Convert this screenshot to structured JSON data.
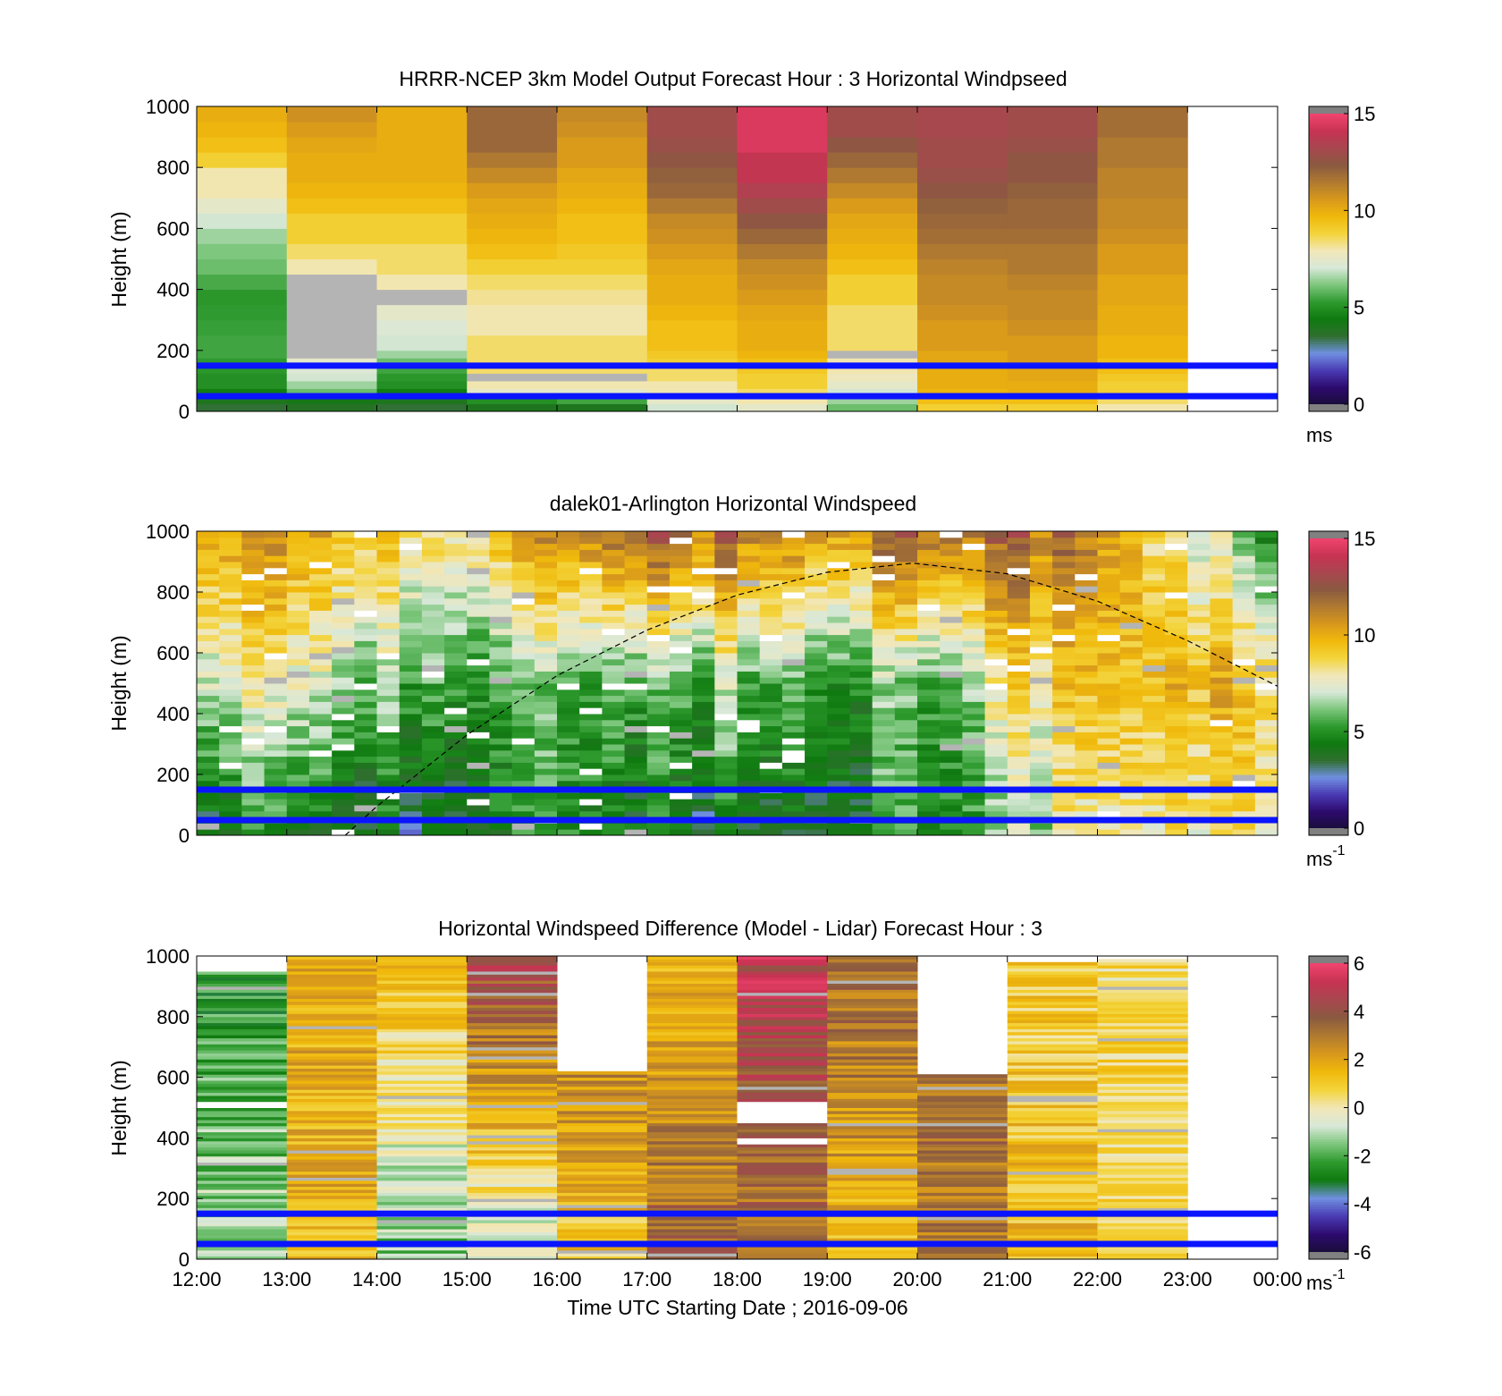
{
  "colors": {
    "speed_colormap": [
      "#1a0d3a",
      "#2d0b6e",
      "#4a3ab4",
      "#6f8fe0",
      "#2f6f2f",
      "#0f7a0f",
      "#2e9a2e",
      "#7cc67c",
      "#d8e8d8",
      "#f2e7b8",
      "#f3d43c",
      "#f0b90b",
      "#d8981c",
      "#b07a30",
      "#8a5a40",
      "#a8474f",
      "#c73352",
      "#f0446e"
    ],
    "diff_colormap": [
      "#1a0d3a",
      "#2d0b6e",
      "#4a3ab4",
      "#6f8fe0",
      "#0f7a0f",
      "#2e9a2e",
      "#7cc67c",
      "#d8e8d8",
      "#f2e7b8",
      "#f3d43c",
      "#f0b90b",
      "#d8981c",
      "#b07a30",
      "#8a5a40",
      "#a8474f",
      "#c73352",
      "#f0446e"
    ],
    "colorbar_ends": "#808080",
    "missing_data": "#b4b4b4",
    "reference_lines": "#0a14ff",
    "curve": "#000000"
  },
  "chart_data": [
    {
      "id": "model",
      "type": "heatmap",
      "title": "HRRR-NCEP 3km Model Output   Forecast Hour : 3 Horizontal Windpseed",
      "ylabel": "Height (m)",
      "ylim": [
        0,
        1000
      ],
      "yticks": [
        "0",
        "200",
        "400",
        "600",
        "800",
        "1000"
      ],
      "xlim": [
        "12:00",
        "00:00"
      ],
      "x_tick_labels": [],
      "colorbar": {
        "min": 0,
        "max": 15,
        "ticks": [
          "0",
          "5",
          "10",
          "15"
        ],
        "unit": "ms",
        "unit_sup": ""
      },
      "reference_lines_m": [
        50,
        150
      ],
      "hours": [
        "12:00",
        "13:00",
        "14:00",
        "15:00",
        "16:00",
        "17:00",
        "18:00",
        "19:00",
        "20:00",
        "21:00",
        "22:00"
      ],
      "heights_m": [
        0,
        25,
        50,
        75,
        100,
        125,
        150,
        175,
        200,
        250,
        300,
        350,
        400,
        450,
        500,
        550,
        600,
        650,
        700,
        750,
        800,
        850,
        900,
        950
      ],
      "bin_top_m": 1000,
      "values_ms": [
        [
          3.5,
          4.0,
          4.5,
          5.0,
          5.0,
          5.2,
          5.3,
          5.5,
          5.5,
          5.4,
          5.3,
          5.2,
          5.6,
          6.0,
          6.2,
          6.5,
          7.0,
          7.5,
          8.0,
          8.0,
          9.0,
          9.5,
          9.8,
          10.0
        ],
        [
          3.8,
          4.2,
          6.0,
          6.5,
          7.0,
          7.2,
          7.5,
          null,
          null,
          null,
          null,
          null,
          null,
          8.0,
          8.5,
          9.0,
          9.0,
          9.5,
          9.8,
          10.0,
          10.0,
          10.2,
          10.5,
          10.8
        ],
        [
          3.5,
          4.0,
          4.5,
          5.0,
          5.2,
          5.5,
          6.0,
          6.5,
          7.0,
          7.2,
          7.5,
          null,
          8.0,
          8.5,
          8.5,
          9.0,
          9.0,
          9.5,
          9.8,
          10.0,
          10.0,
          10.0,
          10.0,
          10.0
        ],
        [
          4.0,
          5.0,
          7.5,
          8.0,
          null,
          8.5,
          8.5,
          8.5,
          8.5,
          8.0,
          8.0,
          8.2,
          8.5,
          9.0,
          9.5,
          9.8,
          10.0,
          10.2,
          10.5,
          11.0,
          11.5,
          12.0,
          12.0,
          12.0
        ],
        [
          4.0,
          5.5,
          7.5,
          8.0,
          null,
          8.5,
          8.5,
          8.5,
          8.5,
          8.0,
          8.0,
          8.2,
          8.5,
          9.0,
          9.2,
          9.5,
          9.5,
          9.8,
          10.0,
          10.2,
          10.5,
          10.5,
          10.8,
          11.0
        ],
        [
          7.0,
          7.5,
          8.0,
          8.0,
          8.5,
          8.5,
          9.0,
          9.2,
          9.5,
          9.5,
          9.8,
          10.0,
          10.0,
          10.2,
          10.5,
          10.8,
          11.0,
          11.5,
          12.0,
          12.2,
          12.5,
          12.8,
          13.0,
          13.0
        ],
        [
          7.5,
          8.0,
          8.5,
          9.0,
          9.0,
          9.2,
          9.5,
          9.8,
          10.0,
          10.0,
          10.2,
          10.5,
          10.8,
          11.0,
          11.5,
          12.0,
          12.5,
          13.0,
          13.5,
          14.0,
          14.0,
          14.5,
          14.5,
          14.5
        ],
        [
          6.0,
          6.5,
          7.0,
          7.5,
          7.8,
          8.0,
          8.0,
          null,
          8.5,
          8.5,
          8.5,
          9.0,
          9.0,
          9.5,
          9.8,
          10.0,
          10.2,
          10.5,
          11.0,
          11.5,
          12.0,
          12.5,
          13.0,
          13.0
        ],
        [
          9.0,
          9.5,
          9.8,
          10.0,
          10.0,
          10.0,
          10.2,
          10.2,
          10.5,
          10.5,
          10.8,
          11.0,
          11.0,
          11.2,
          11.5,
          11.8,
          12.0,
          12.2,
          12.5,
          12.8,
          13.0,
          13.0,
          13.2,
          13.2
        ],
        [
          9.0,
          9.5,
          10.0,
          10.0,
          10.2,
          10.2,
          10.5,
          10.5,
          10.5,
          10.8,
          11.0,
          11.0,
          11.2,
          11.5,
          11.5,
          11.8,
          12.0,
          12.0,
          12.2,
          12.5,
          12.5,
          12.8,
          13.0,
          13.0
        ],
        [
          8.0,
          8.5,
          9.0,
          9.0,
          9.2,
          9.5,
          9.5,
          9.8,
          9.8,
          10.0,
          10.0,
          10.2,
          10.2,
          10.5,
          10.5,
          10.8,
          11.0,
          11.0,
          11.2,
          11.2,
          11.5,
          11.5,
          11.8,
          11.8
        ]
      ]
    },
    {
      "id": "lidar",
      "type": "heatmap",
      "title": "dalek01-Arlington  Horizontal Windspeed",
      "ylabel": "Height (m)",
      "ylim": [
        0,
        1000
      ],
      "yticks": [
        "0",
        "200",
        "400",
        "600",
        "800",
        "1000"
      ],
      "xlim": [
        "12:00",
        "00:00"
      ],
      "x_tick_labels": [],
      "colorbar": {
        "min": 0,
        "max": 15,
        "ticks": [
          "0",
          "5",
          "10",
          "15"
        ],
        "unit": "ms",
        "unit_sup": "-1"
      },
      "reference_lines_m": [
        50,
        150
      ],
      "profiles": {
        "start": "12:00",
        "interval_min": 15,
        "count": 48,
        "height_step_m": 20
      },
      "speed_profile_ms": {
        "hours": [
          "12:00",
          "13:00",
          "14:00",
          "15:00",
          "16:00",
          "17:00",
          "18:00",
          "19:00",
          "20:00",
          "21:00",
          "22:00",
          "23:00",
          "24:00"
        ],
        "near_surface": [
          4.0,
          4.0,
          4.0,
          4.5,
          5.0,
          4.0,
          3.8,
          4.2,
          5.0,
          6.0,
          8.5,
          8.5,
          8.5
        ],
        "at_500m": [
          7.5,
          7.0,
          6.5,
          6.0,
          5.5,
          5.5,
          6.0,
          5.8,
          5.5,
          8.0,
          10.0,
          10.0,
          9.5
        ],
        "at_1000m": [
          11.0,
          10.0,
          9.5,
          9.0,
          11.0,
          12.0,
          11.5,
          11.0,
          12.0,
          12.0,
          11.5,
          8.0,
          5.0
        ]
      },
      "boundary_layer_curve": {
        "x_hours": [
          13.65,
          14.0,
          15.0,
          16.0,
          17.0,
          18.0,
          19.0,
          19.95,
          21.0,
          22.0,
          23.0,
          24.0
        ],
        "height_m": [
          0,
          95,
          330,
          525,
          675,
          790,
          865,
          895,
          860,
          770,
          640,
          490
        ]
      }
    },
    {
      "id": "difference",
      "type": "heatmap",
      "title": "Horizontal Windspeed Difference (Model - Lidar) Forecast Hour : 3",
      "ylabel": "Height (m)",
      "xlabel": "Time UTC  Starting Date ; 2016-09-06",
      "ylim": [
        0,
        1000
      ],
      "yticks": [
        "0",
        "200",
        "400",
        "600",
        "800",
        "1000"
      ],
      "xlim": [
        "12:00",
        "00:00"
      ],
      "x_tick_labels": [
        "12:00",
        "13:00",
        "14:00",
        "15:00",
        "16:00",
        "17:00",
        "18:00",
        "19:00",
        "20:00",
        "21:00",
        "22:00",
        "23:00",
        "00:00"
      ],
      "colorbar": {
        "min": -6,
        "max": 6,
        "ticks": [
          "-6",
          "-4",
          "-2",
          "0",
          "2",
          "4",
          "6"
        ],
        "unit": "ms",
        "unit_sup": "-1"
      },
      "reference_lines_m": [
        50,
        150
      ],
      "hours": [
        "12:00",
        "13:00",
        "14:00",
        "15:00",
        "16:00",
        "17:00",
        "18:00",
        "19:00",
        "20:00",
        "21:00",
        "22:00"
      ],
      "columns": [
        {
          "top_m": 990,
          "low_ms": -1.0,
          "high_ms": -2.5,
          "blank_m": [
            [
              500,
              520
            ],
            [
              950,
              1000
            ]
          ]
        },
        {
          "top_m": 1000,
          "low_ms": 1.5,
          "high_ms": 2.0
        },
        {
          "top_m": 1000,
          "low_ms": -1.5,
          "high_ms": 1.5
        },
        {
          "top_m": 1000,
          "low_ms": -1.0,
          "high_ms": 4.5
        },
        {
          "top_m": 620,
          "low_ms": 1.0,
          "high_ms": 2.5
        },
        {
          "top_m": 1000,
          "low_ms": 3.5,
          "high_ms": 1.5
        },
        {
          "top_m": 1000,
          "low_ms": 3.0,
          "high_ms": 5.0,
          "blank_m": [
            [
              380,
              400
            ],
            [
              450,
              520
            ]
          ]
        },
        {
          "top_m": 1000,
          "low_ms": 1.5,
          "high_ms": 3.5
        },
        {
          "top_m": 610,
          "low_ms": 3.0,
          "high_ms": 3.0
        },
        {
          "top_m": 980,
          "low_ms": 1.5,
          "high_ms": 0.8
        },
        {
          "top_m": 990,
          "low_ms": 0.5,
          "high_ms": 0.5
        }
      ]
    }
  ]
}
